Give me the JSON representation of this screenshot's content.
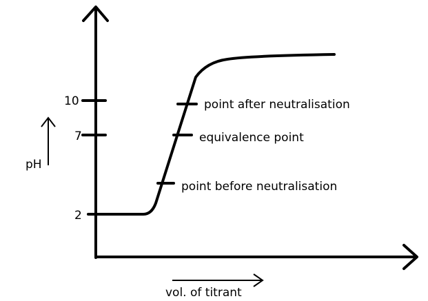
{
  "axes": {
    "y_label": "pH",
    "x_label": "vol. of titrant",
    "y_ticks": [
      "10",
      "7",
      "2"
    ]
  },
  "annotations": {
    "after": "point after neutralisation",
    "equivalence": "equivalence point",
    "before": "point before neutralisation"
  },
  "colors": {
    "ink": "#000000",
    "background": "#ffffff"
  }
}
